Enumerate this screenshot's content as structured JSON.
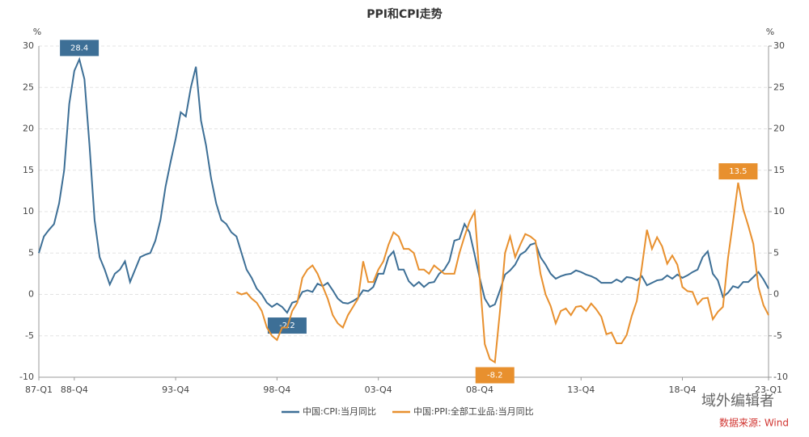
{
  "chart_data": {
    "type": "line",
    "title": "PPI和CPI走势",
    "y_unit": "%",
    "y2_unit": "%",
    "categories": [
      "87-Q1",
      null,
      null,
      null,
      null,
      null,
      null,
      "88-Q4",
      null,
      null,
      null,
      null,
      null,
      null,
      null,
      null,
      null,
      null,
      null,
      null,
      null,
      null,
      null,
      null,
      null,
      null,
      null,
      "93-Q4",
      null,
      null,
      null,
      null,
      null,
      null,
      null,
      null,
      null,
      null,
      null,
      null,
      null,
      null,
      null,
      null,
      null,
      null,
      null,
      "98-Q4",
      null,
      null,
      null,
      null,
      null,
      null,
      null,
      null,
      null,
      null,
      null,
      null,
      null,
      null,
      null,
      null,
      null,
      null,
      null,
      "03-Q4",
      null,
      null,
      null,
      null,
      null,
      null,
      null,
      null,
      null,
      null,
      null,
      null,
      null,
      null,
      null,
      null,
      null,
      null,
      null,
      "08-Q4",
      null,
      null,
      null,
      null,
      null,
      null,
      null,
      null,
      null,
      null,
      null,
      null,
      null,
      null,
      null,
      null,
      null,
      null,
      null,
      "13-Q4",
      null,
      null,
      null,
      null,
      null,
      null,
      null,
      null,
      null,
      null,
      null,
      null,
      null,
      null,
      null,
      null,
      null,
      null,
      null,
      "18-Q4",
      null,
      null,
      null,
      null,
      null,
      null,
      null,
      null,
      null,
      null,
      null,
      null,
      null,
      null,
      null,
      null,
      "23-Q1"
    ],
    "series": [
      {
        "name": "中国:CPI:当月同比",
        "color": "#3d6f96",
        "values": [
          5,
          7,
          7.8,
          8.5,
          11,
          15,
          23,
          27,
          28.4,
          26,
          18,
          9,
          4.5,
          3,
          1.2,
          2.5,
          3,
          4,
          1.5,
          3,
          4.5,
          4.8,
          5,
          6.5,
          9,
          13,
          16,
          18.8,
          22,
          21.5,
          25,
          27.5,
          21,
          18,
          14,
          11,
          9,
          8.5,
          7.5,
          7,
          5,
          3,
          2,
          0.7,
          0,
          -1,
          -1.5,
          -1.1,
          -1.5,
          -2.2,
          -1,
          -0.8,
          0.3,
          0.5,
          0.3,
          1.3,
          1,
          1.4,
          0.5,
          -0.5,
          -1,
          -1.1,
          -0.8,
          -0.4,
          0.5,
          0.4,
          0.9,
          2.5,
          2.5,
          4.5,
          5.2,
          3,
          3,
          1.6,
          1,
          1.5,
          0.9,
          1.4,
          1.5,
          2.5,
          3,
          4,
          6.5,
          6.7,
          8.5,
          7.5,
          4.8,
          2,
          -0.5,
          -1.5,
          -1.2,
          0.5,
          2.4,
          2.9,
          3.6,
          4.8,
          5.2,
          6,
          6.2,
          4.5,
          3.6,
          2.5,
          1.9,
          2.2,
          2.4,
          2.5,
          2.9,
          2.7,
          2.4,
          2.2,
          1.9,
          1.4,
          1.4,
          1.4,
          1.8,
          1.5,
          2.1,
          2,
          1.7,
          2.2,
          1.1,
          1.4,
          1.7,
          1.8,
          2.3,
          1.9,
          2.4,
          2,
          2.3,
          2.7,
          3,
          4.5,
          5.2,
          2.5,
          1.7,
          -0.3,
          0.2,
          1,
          0.8,
          1.5,
          1.5,
          2.1,
          2.7,
          1.8,
          0.7
        ],
        "value_labels": [
          null,
          null,
          null,
          null,
          null,
          null,
          null,
          null,
          "28.4",
          null,
          null,
          null,
          null,
          null,
          null,
          null,
          null,
          null,
          null,
          null,
          null,
          null,
          null,
          null,
          null,
          null,
          null,
          null,
          null,
          null,
          null,
          null,
          null,
          null,
          null,
          null,
          null,
          null,
          null,
          null,
          null,
          null,
          null,
          null,
          null,
          null,
          null,
          null,
          null,
          "-2.2",
          null,
          null,
          null,
          null,
          null,
          null,
          null,
          null,
          null,
          null,
          null,
          null,
          null,
          null,
          null,
          null,
          null,
          null,
          null,
          null,
          null,
          null,
          null,
          null,
          null,
          null,
          null,
          null,
          null,
          null,
          null,
          null,
          null,
          null,
          null,
          null,
          null,
          null,
          null,
          null,
          null,
          null,
          null,
          null,
          null,
          null,
          null,
          null,
          null,
          null,
          null,
          null,
          null,
          null,
          null,
          null,
          null,
          null,
          null,
          null,
          null,
          null,
          null,
          null,
          null,
          null,
          null,
          null,
          null,
          null,
          null,
          null,
          null,
          null,
          null,
          null,
          null,
          null,
          null,
          null,
          null,
          null,
          null,
          null,
          null,
          null,
          null,
          null,
          null,
          null,
          null,
          null,
          null,
          null,
          null
        ]
      },
      {
        "name": "中国:PPI:全部工业品:当月同比",
        "color": "#e8902e",
        "values": [
          null,
          null,
          null,
          null,
          null,
          null,
          null,
          null,
          null,
          null,
          null,
          null,
          null,
          null,
          null,
          null,
          null,
          null,
          null,
          null,
          null,
          null,
          null,
          null,
          null,
          null,
          null,
          null,
          null,
          null,
          null,
          null,
          null,
          null,
          null,
          null,
          null,
          null,
          null,
          0.3,
          0,
          0.2,
          -0.5,
          -1,
          -2,
          -4,
          -5,
          -5.5,
          -4,
          -4,
          -2,
          -1,
          2,
          3,
          3.5,
          2.5,
          1,
          -0.5,
          -2.5,
          -3.5,
          -4,
          -2.5,
          -1.5,
          -0.5,
          4,
          1.5,
          1.5,
          3,
          4,
          6,
          7.5,
          7,
          5.5,
          5.5,
          5,
          3,
          3,
          2.5,
          3.5,
          3,
          2.5,
          2.5,
          2.5,
          5,
          7,
          8.8,
          10,
          2,
          -6,
          -7.8,
          -8.2,
          -2,
          5,
          7,
          4.5,
          6,
          7.3,
          7,
          6.5,
          2.5,
          0,
          -1.4,
          -3.5,
          -2,
          -1.7,
          -2.5,
          -1.5,
          -1.4,
          -2,
          -1.1,
          -1.8,
          -2.7,
          -4.8,
          -4.6,
          -5.9,
          -5.9,
          -4.9,
          -2.6,
          -0.8,
          3.3,
          7.8,
          5.5,
          6.9,
          5.8,
          3.7,
          4.7,
          3.6,
          0.9,
          0.4,
          0.3,
          -1.2,
          -0.5,
          -0.4,
          -3,
          -2.1,
          -1.5,
          4.4,
          8.8,
          13.5,
          10.3,
          8.3,
          6.1,
          0.9,
          -1.3,
          -2.5
        ],
        "value_labels": [
          null,
          null,
          null,
          null,
          null,
          null,
          null,
          null,
          null,
          null,
          null,
          null,
          null,
          null,
          null,
          null,
          null,
          null,
          null,
          null,
          null,
          null,
          null,
          null,
          null,
          null,
          null,
          null,
          null,
          null,
          null,
          null,
          null,
          null,
          null,
          null,
          null,
          null,
          null,
          null,
          null,
          null,
          null,
          null,
          null,
          null,
          null,
          null,
          null,
          null,
          null,
          null,
          null,
          null,
          null,
          null,
          null,
          null,
          null,
          null,
          null,
          null,
          null,
          null,
          null,
          null,
          null,
          null,
          null,
          null,
          null,
          null,
          null,
          null,
          null,
          null,
          null,
          null,
          null,
          null,
          null,
          null,
          null,
          null,
          null,
          null,
          null,
          null,
          null,
          null,
          "-8.2",
          null,
          null,
          null,
          null,
          null,
          null,
          null,
          null,
          null,
          null,
          null,
          null,
          null,
          null,
          null,
          null,
          null,
          null,
          null,
          null,
          null,
          null,
          null,
          null,
          null,
          null,
          null,
          null,
          null,
          null,
          null,
          null,
          null,
          null,
          null,
          null,
          null,
          null,
          null,
          null,
          null,
          null,
          null,
          null,
          null,
          null,
          null,
          "13.5",
          null,
          null,
          null,
          null,
          null,
          null
        ]
      }
    ],
    "ylim": [
      -10,
      30
    ],
    "yticks": [
      -10,
      -5,
      0,
      5,
      10,
      15,
      20,
      25,
      30
    ],
    "y2lim": [
      -10,
      30
    ],
    "y2ticks": [
      -10,
      -5,
      0,
      5,
      10,
      15,
      20,
      25,
      30
    ],
    "grid": true,
    "legend": "bottom",
    "source": "数据来源: Wind",
    "watermark": "域外编辑者"
  }
}
